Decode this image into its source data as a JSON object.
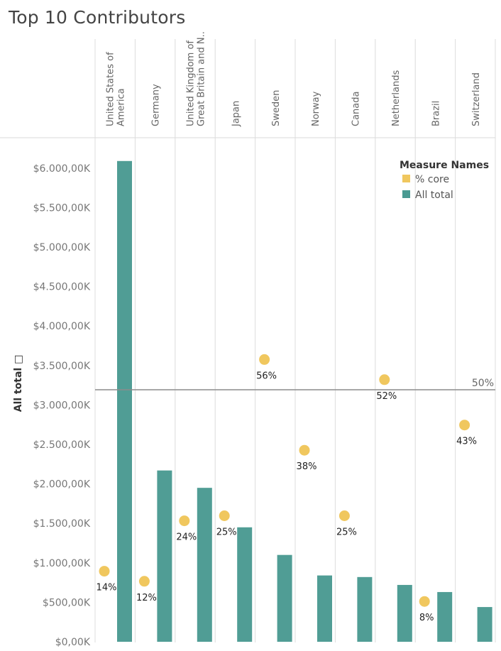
{
  "title": "Top 10  Contributors",
  "chart_data": {
    "type": "bar",
    "categories": [
      "United States of America",
      "Germany",
      "United Kingdom of Great Britain and N..",
      "Japan",
      "Sweden",
      "Norway",
      "Canada",
      "Netherlands",
      "Brazil",
      "Switzerland"
    ],
    "header_lines": [
      [
        "United States of",
        "America"
      ],
      [
        "Germany"
      ],
      [
        "United Kingdom of",
        "Great Britain and N.."
      ],
      [
        "Japan"
      ],
      [
        "Sweden"
      ],
      [
        "Norway"
      ],
      [
        "Canada"
      ],
      [
        "Netherlands"
      ],
      [
        "Brazil"
      ],
      [
        "Switzerland"
      ]
    ],
    "series": [
      {
        "name": "All total",
        "kind": "bar",
        "color": "#4a9a92",
        "values": [
          6090,
          2170,
          1950,
          1450,
          1100,
          840,
          820,
          720,
          630,
          440
        ]
      },
      {
        "name": "% core",
        "kind": "dot",
        "color": "#f0c75e",
        "values": [
          14,
          12,
          24,
          25,
          56,
          38,
          25,
          52,
          8,
          43
        ],
        "labels": [
          "14%",
          "12%",
          "24%",
          "25%",
          "56%",
          "38%",
          "25%",
          "52%",
          "8%",
          "43%"
        ]
      }
    ],
    "ylabel": "All total □",
    "ylim": [
      0,
      6000
    ],
    "yticks": [
      0,
      500,
      1000,
      1500,
      2000,
      2500,
      3000,
      3500,
      4000,
      4500,
      5000,
      5500,
      6000
    ],
    "ytick_labels": [
      "$0,00K",
      "$500,00K",
      "$1.000,00K",
      "$1.500,00K",
      "$2.000,00K",
      "$2.500,00K",
      "$3.000,00K",
      "$3.500,00K",
      "$4.000,00K",
      "$4.500,00K",
      "$5.000,00K",
      "$5.500,00K",
      "$6.000,00K"
    ],
    "reference_line": {
      "value": 50,
      "label": "50%"
    },
    "legend": {
      "title": "Measure Names",
      "position": "top-right",
      "items": [
        {
          "label": "% core",
          "color": "#f0c75e"
        },
        {
          "label": "All total",
          "color": "#4a9a92"
        }
      ]
    },
    "grid": false
  }
}
